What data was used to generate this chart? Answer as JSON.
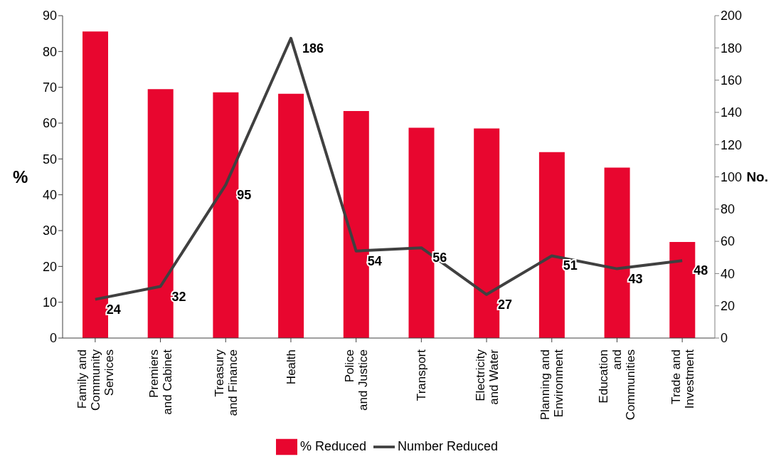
{
  "chart_data": {
    "type": "bar",
    "categories": [
      "Family and\nCommunity\nServices",
      "Premiers\nand Cabinet",
      "Treasury\nand Finance",
      "Health",
      "Police\nand Justice",
      "Transport",
      "Electricity\nand Water",
      "Planning and\nEnvironment",
      "Education\nand\nCommunities",
      "Trade and\nInvestment"
    ],
    "series": [
      {
        "name": "% Reduced",
        "color": "#e8062f",
        "values": [
          85.6,
          69.5,
          68.6,
          68.2,
          63.4,
          58.7,
          58.5,
          51.9,
          47.6,
          26.8
        ]
      },
      {
        "name": "Number Reduced",
        "type": "line",
        "axis": "y2",
        "color": "#404040",
        "values": [
          24,
          32,
          95,
          186,
          54,
          56,
          27,
          51,
          43,
          48
        ],
        "value_labels": [
          "24",
          "32",
          "95",
          "186",
          "54",
          "56",
          "27",
          "51",
          "43",
          "48"
        ]
      }
    ],
    "ylabel": "%",
    "y2label": "No.",
    "ylim": [
      0,
      90
    ],
    "yticks": [
      0,
      10,
      20,
      30,
      40,
      50,
      60,
      70,
      80,
      90
    ],
    "y2lim": [
      0,
      200
    ],
    "y2ticks": [
      0,
      20,
      40,
      60,
      80,
      100,
      120,
      140,
      160,
      180,
      200
    ],
    "grid": false,
    "legend": "bottom",
    "marker": "none",
    "line_style": "solid"
  }
}
